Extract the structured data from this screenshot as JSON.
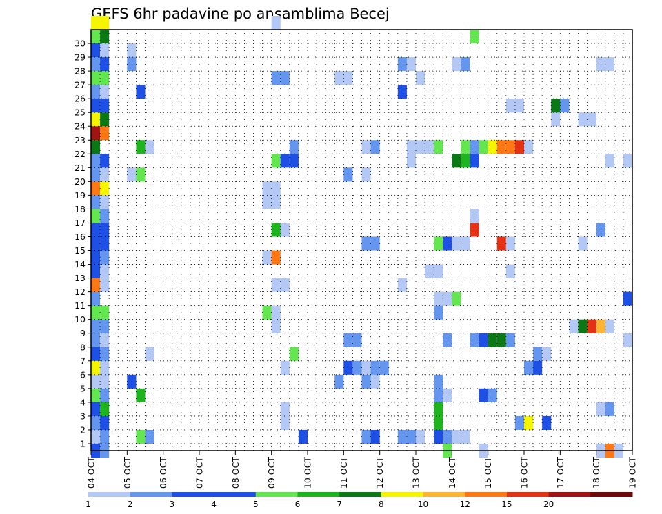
{
  "chart_data": {
    "type": "heatmap",
    "title": "GEFS 6hr padavine po ansamblima Becej",
    "x_ticks": [
      "04 OCT",
      "05 OCT",
      "06 OCT",
      "07 OCT",
      "08 OCT",
      "09 OCT",
      "10 OCT",
      "11 OCT",
      "12 OCT",
      "13 OCT",
      "14 OCT",
      "15 OCT",
      "16 OCT",
      "17 OCT",
      "18 OCT",
      "19 OCT"
    ],
    "y_ticks": [
      "1",
      "2",
      "3",
      "4",
      "5",
      "6",
      "7",
      "8",
      "9",
      "10",
      "11",
      "12",
      "13",
      "14",
      "15",
      "16",
      "17",
      "18",
      "19",
      "20",
      "21",
      "22",
      "23",
      "24",
      "25",
      "26",
      "27",
      "28",
      "29",
      "30"
    ],
    "xlim": [
      0,
      60
    ],
    "ylim": [
      0,
      30
    ],
    "grid": true,
    "colorbar": {
      "labels": [
        "1",
        "2",
        "3",
        "4",
        "5",
        "6",
        "7",
        "8",
        "10",
        "12",
        "15",
        "20"
      ],
      "colors": [
        "#b4c8f5",
        "#6496f0",
        "#1e50e6",
        "#1e50e6",
        "#64e650",
        "#1eb41e",
        "#0a7814",
        "#f5f500",
        "#ffb432",
        "#ff7814",
        "#e63214",
        "#a01414",
        "#6e0a0a"
      ]
    },
    "cells": [
      [
        0,
        0,
        1
      ],
      [
        1,
        0,
        2
      ],
      [
        0,
        1,
        2
      ],
      [
        1,
        1,
        4
      ],
      [
        0,
        2,
        3
      ],
      [
        1,
        2,
        6
      ],
      [
        0,
        3,
        5
      ],
      [
        1,
        3,
        2
      ],
      [
        0,
        4,
        1
      ],
      [
        1,
        4,
        1
      ],
      [
        0,
        5,
        8
      ],
      [
        1,
        5,
        1
      ],
      [
        0,
        6,
        3
      ],
      [
        1,
        6,
        2
      ],
      [
        0,
        7,
        2
      ],
      [
        1,
        7,
        1
      ],
      [
        0,
        8,
        2
      ],
      [
        1,
        8,
        2
      ],
      [
        0,
        9,
        5
      ],
      [
        1,
        9,
        5
      ],
      [
        0,
        10,
        2
      ],
      [
        0,
        11,
        10
      ],
      [
        1,
        11,
        1
      ],
      [
        0,
        12,
        4
      ],
      [
        1,
        12,
        1
      ],
      [
        0,
        13,
        3
      ],
      [
        1,
        13,
        2
      ],
      [
        0,
        14,
        3
      ],
      [
        1,
        14,
        3
      ],
      [
        0,
        15,
        3
      ],
      [
        1,
        15,
        3
      ],
      [
        0,
        16,
        5
      ],
      [
        1,
        16,
        2
      ],
      [
        0,
        17,
        2
      ],
      [
        1,
        17,
        1
      ],
      [
        0,
        18,
        10
      ],
      [
        1,
        18,
        8
      ],
      [
        0,
        19,
        2
      ],
      [
        1,
        19,
        1
      ],
      [
        0,
        20,
        2
      ],
      [
        1,
        20,
        4
      ],
      [
        0,
        21,
        7
      ],
      [
        0,
        22,
        12
      ],
      [
        1,
        22,
        10
      ],
      [
        0,
        23,
        8
      ],
      [
        1,
        23,
        7
      ],
      [
        0,
        24,
        3
      ],
      [
        1,
        24,
        3
      ],
      [
        0,
        25,
        2
      ],
      [
        1,
        25,
        1
      ],
      [
        0,
        26,
        5
      ],
      [
        1,
        26,
        5
      ],
      [
        0,
        27,
        2
      ],
      [
        1,
        27,
        3
      ],
      [
        0,
        28,
        3
      ],
      [
        1,
        28,
        1
      ],
      [
        0,
        29,
        5
      ],
      [
        1,
        29,
        7
      ],
      [
        0,
        30,
        8
      ],
      [
        1,
        30,
        8
      ],
      [
        0,
        -1,
        3
      ],
      [
        1,
        -1,
        2
      ],
      [
        4,
        19,
        1
      ],
      [
        5,
        19,
        5
      ],
      [
        4,
        28,
        1
      ],
      [
        4,
        27,
        2
      ],
      [
        5,
        25,
        3
      ],
      [
        5,
        21,
        6
      ],
      [
        6,
        21,
        1
      ],
      [
        4,
        4,
        4
      ],
      [
        5,
        3,
        6
      ],
      [
        5,
        0,
        5
      ],
      [
        6,
        0,
        2
      ],
      [
        6,
        6,
        1
      ],
      [
        20,
        30,
        1
      ],
      [
        19,
        17,
        1
      ],
      [
        20,
        17,
        1
      ],
      [
        19,
        18,
        1
      ],
      [
        20,
        18,
        1
      ],
      [
        20,
        15,
        6
      ],
      [
        21,
        15,
        1
      ],
      [
        19,
        13,
        1
      ],
      [
        20,
        13,
        10
      ],
      [
        19,
        9,
        5
      ],
      [
        20,
        9,
        1
      ],
      [
        20,
        11,
        1
      ],
      [
        21,
        11,
        1
      ],
      [
        20,
        8,
        1
      ],
      [
        21,
        2,
        1
      ],
      [
        21,
        1,
        1
      ],
      [
        21,
        5,
        1
      ],
      [
        22,
        6,
        5
      ],
      [
        20,
        20,
        5
      ],
      [
        21,
        20,
        4
      ],
      [
        22,
        20,
        3
      ],
      [
        22,
        21,
        2
      ],
      [
        20,
        26,
        2
      ],
      [
        21,
        26,
        2
      ],
      [
        23,
        0,
        3
      ],
      [
        27,
        4,
        2
      ],
      [
        28,
        5,
        3
      ],
      [
        29,
        5,
        2
      ],
      [
        30,
        4,
        2
      ],
      [
        31,
        4,
        1
      ],
      [
        28,
        7,
        2
      ],
      [
        29,
        7,
        2
      ],
      [
        30,
        5,
        1
      ],
      [
        31,
        5,
        2
      ],
      [
        32,
        5,
        2
      ],
      [
        30,
        0,
        2
      ],
      [
        31,
        0,
        3
      ],
      [
        27,
        26,
        1
      ],
      [
        28,
        26,
        1
      ],
      [
        28,
        19,
        2
      ],
      [
        30,
        19,
        1
      ],
      [
        30,
        21,
        1
      ],
      [
        31,
        21,
        2
      ],
      [
        30,
        14,
        2
      ],
      [
        31,
        14,
        2
      ],
      [
        34,
        11,
        1
      ],
      [
        34,
        0,
        2
      ],
      [
        35,
        0,
        2
      ],
      [
        36,
        0,
        1
      ],
      [
        34,
        25,
        3
      ],
      [
        34,
        27,
        2
      ],
      [
        35,
        27,
        1
      ],
      [
        35,
        21,
        1
      ],
      [
        36,
        21,
        1
      ],
      [
        37,
        21,
        1
      ],
      [
        38,
        21,
        5
      ],
      [
        35,
        20,
        1
      ],
      [
        36,
        26,
        1
      ],
      [
        38,
        14,
        5
      ],
      [
        39,
        14,
        3
      ],
      [
        40,
        14,
        1
      ],
      [
        41,
        14,
        1
      ],
      [
        38,
        12,
        1
      ],
      [
        37,
        12,
        1
      ],
      [
        38,
        2,
        6
      ],
      [
        38,
        1,
        6
      ],
      [
        38,
        0,
        3
      ],
      [
        39,
        0,
        2
      ],
      [
        40,
        0,
        1
      ],
      [
        41,
        0,
        1
      ],
      [
        38,
        3,
        2
      ],
      [
        39,
        3,
        1
      ],
      [
        38,
        4,
        2
      ],
      [
        38,
        9,
        2
      ],
      [
        38,
        10,
        1
      ],
      [
        39,
        10,
        1
      ],
      [
        38,
        14,
        5
      ],
      [
        39,
        7,
        2
      ],
      [
        39,
        -1,
        5
      ],
      [
        40,
        10,
        5
      ],
      [
        40,
        27,
        1
      ],
      [
        41,
        27,
        2
      ],
      [
        42,
        29,
        5
      ],
      [
        40,
        20,
        7
      ],
      [
        41,
        20,
        6
      ],
      [
        42,
        20,
        3
      ],
      [
        42,
        21,
        2
      ],
      [
        41,
        21,
        5
      ],
      [
        42,
        21,
        2
      ],
      [
        43,
        21,
        5
      ],
      [
        44,
        21,
        8
      ],
      [
        45,
        21,
        10
      ],
      [
        46,
        21,
        10
      ],
      [
        47,
        21,
        11
      ],
      [
        48,
        21,
        1
      ],
      [
        42,
        15,
        11
      ],
      [
        42,
        16,
        1
      ],
      [
        42,
        7,
        2
      ],
      [
        43,
        7,
        3
      ],
      [
        44,
        7,
        7
      ],
      [
        45,
        7,
        7
      ],
      [
        46,
        7,
        2
      ],
      [
        43,
        3,
        3
      ],
      [
        44,
        3,
        2
      ],
      [
        45,
        14,
        11
      ],
      [
        46,
        14,
        1
      ],
      [
        46,
        12,
        1
      ],
      [
        46,
        24,
        1
      ],
      [
        47,
        24,
        1
      ],
      [
        47,
        1,
        2
      ],
      [
        48,
        1,
        8
      ],
      [
        50,
        1,
        4
      ],
      [
        48,
        5,
        2
      ],
      [
        49,
        5,
        3
      ],
      [
        49,
        6,
        2
      ],
      [
        50,
        6,
        1
      ],
      [
        43,
        -1,
        1
      ],
      [
        51,
        24,
        1
      ],
      [
        51,
        23,
        1
      ],
      [
        51,
        24,
        1
      ],
      [
        52,
        24,
        2
      ],
      [
        51,
        24,
        7
      ],
      [
        54,
        23,
        1
      ],
      [
        55,
        23,
        1
      ],
      [
        54,
        14,
        1
      ],
      [
        53,
        8,
        1
      ],
      [
        54,
        8,
        7
      ],
      [
        55,
        8,
        11
      ],
      [
        56,
        8,
        9
      ],
      [
        57,
        8,
        1
      ],
      [
        56,
        27,
        1
      ],
      [
        57,
        27,
        1
      ],
      [
        56,
        15,
        2
      ],
      [
        56,
        2,
        1
      ],
      [
        57,
        2,
        2
      ],
      [
        56,
        -1,
        1
      ],
      [
        57,
        -1,
        10
      ],
      [
        58,
        -1,
        1
      ],
      [
        57,
        20,
        1
      ],
      [
        59,
        20,
        1
      ],
      [
        59,
        10,
        3
      ],
      [
        59,
        7,
        1
      ]
    ]
  }
}
